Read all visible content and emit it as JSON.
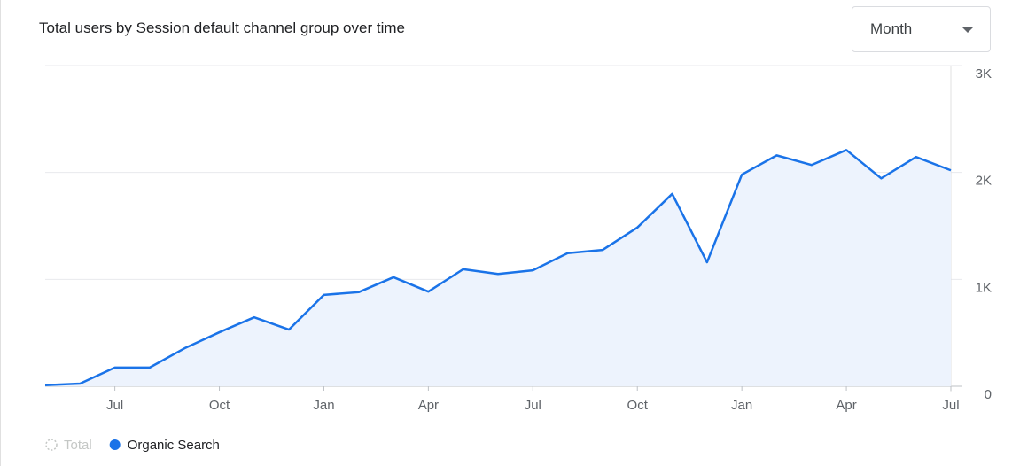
{
  "controls": {
    "period": "Month"
  },
  "chart_data": {
    "type": "area",
    "title": "Total users by Session default channel group over time",
    "categories": [
      null,
      null,
      "Jul",
      null,
      null,
      "Oct",
      null,
      null,
      "Jan",
      null,
      null,
      "Apr",
      null,
      null,
      "Jul",
      null,
      null,
      "Oct",
      null,
      null,
      "Jan",
      null,
      null,
      "Apr",
      null,
      null,
      "Jul"
    ],
    "series": [
      {
        "name": "Organic Search",
        "color": "#1a73e8",
        "values": [
          10,
          25,
          175,
          175,
          355,
          505,
          645,
          530,
          855,
          880,
          1020,
          885,
          1095,
          1050,
          1085,
          1245,
          1275,
          1485,
          1800,
          1160,
          1980,
          2160,
          2070,
          2210,
          1945,
          2145,
          2020
        ]
      }
    ],
    "inactive_series": [
      "Total"
    ],
    "ylim": [
      0,
      3000
    ],
    "yticks": [
      0,
      {
        "value": 1000,
        "label": "1K"
      },
      {
        "value": 2000,
        "label": "2K"
      },
      {
        "value": 3000,
        "label": "3K"
      }
    ],
    "y_axis_side": "right",
    "grid": true,
    "fill_color": "#edf3fd",
    "legend": "bottom-left"
  }
}
